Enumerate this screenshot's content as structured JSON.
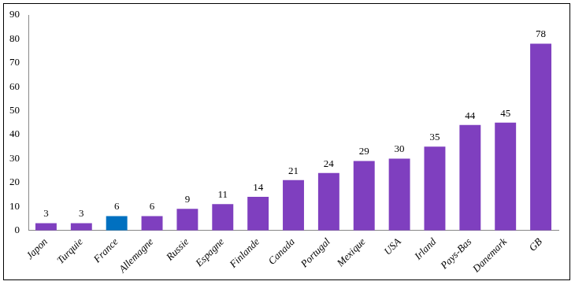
{
  "chart_data": {
    "type": "bar",
    "categories": [
      "Japon",
      "Turquie",
      "France",
      "Allemagne",
      "Russie",
      "Espagne",
      "Finlande",
      "Canada",
      "Portugal",
      "Mexique",
      "USA",
      "Irland",
      "Pays-Bas",
      "Danemark",
      "GB"
    ],
    "values": [
      3,
      3,
      6,
      6,
      9,
      11,
      14,
      21,
      24,
      29,
      30,
      35,
      44,
      45,
      78
    ],
    "colors": [
      "#7f3fbf",
      "#7f3fbf",
      "#0070c0",
      "#7f3fbf",
      "#7f3fbf",
      "#7f3fbf",
      "#7f3fbf",
      "#7f3fbf",
      "#7f3fbf",
      "#7f3fbf",
      "#7f3fbf",
      "#7f3fbf",
      "#7f3fbf",
      "#7f3fbf",
      "#7f3fbf"
    ],
    "ylim": [
      0,
      90
    ],
    "yticks": [
      0,
      10,
      20,
      30,
      40,
      50,
      60,
      70,
      80,
      90
    ],
    "grid": false,
    "data_labels": true
  }
}
